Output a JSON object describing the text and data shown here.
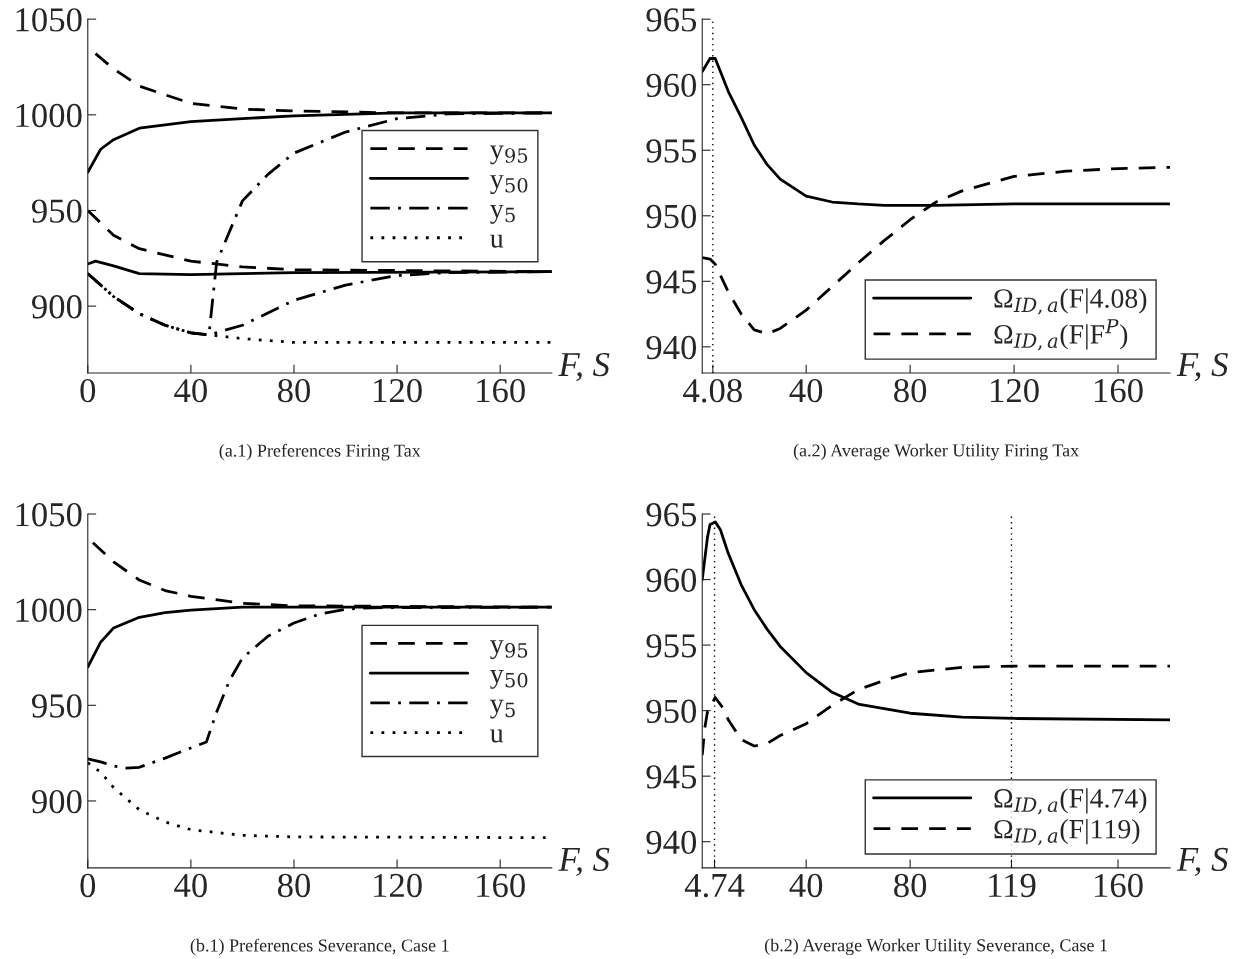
{
  "chart_data": [
    {
      "type": "line",
      "title": "(a.1) Preferences Firing Tax",
      "xlabel": "F, S",
      "xlim": [
        0,
        180
      ],
      "xticks": [
        0,
        40,
        80,
        120,
        160
      ],
      "ylim": [
        865,
        1050
      ],
      "yticks": [
        900,
        950,
        1000,
        1050
      ],
      "legend": "right",
      "grid": false,
      "series": [
        {
          "name": "y$_{95}$",
          "color": "#000000",
          "line_style": "dashed",
          "x": [
            3,
            10,
            20,
            40,
            60,
            80,
            120,
            180
          ],
          "values": [
            1032,
            1024,
            1015,
            1006,
            1003,
            1002,
            1001,
            1001
          ]
        },
        {
          "name": "y$_{50}$",
          "color": "#000000",
          "line_style": "solid",
          "x": [
            0,
            5,
            10,
            20,
            40,
            60,
            80,
            120,
            180
          ],
          "values": [
            970,
            982,
            987,
            993,
            996.5,
            998,
            999.5,
            1001,
            1001
          ]
        },
        {
          "name": "y$_{5}$",
          "color": "#000000",
          "line_style": "dashdot",
          "x": [
            0,
            10,
            20,
            30,
            40,
            47,
            50,
            60,
            70,
            80,
            100,
            120,
            140,
            180
          ],
          "values": [
            917,
            905,
            896,
            890,
            886,
            885,
            923,
            955,
            969,
            980,
            991,
            998,
            1000.5,
            1001
          ]
        },
        {
          "name": "u",
          "color": "#000000",
          "line_style": "dotted",
          "x": [
            0,
            10,
            20,
            30,
            40,
            47,
            60,
            80,
            180
          ],
          "values": [
            917,
            905,
            896,
            890,
            886,
            885,
            883,
            881,
            881
          ]
        },
        {
          "color": "#000000",
          "line_style": "dashed",
          "x": [
            0,
            10,
            20,
            40,
            60,
            80,
            180
          ],
          "values": [
            950,
            937,
            930,
            923.5,
            920.5,
            919,
            918
          ]
        },
        {
          "color": "#000000",
          "line_style": "solid",
          "x": [
            0,
            3,
            10,
            20,
            40,
            80,
            180
          ],
          "values": [
            922,
            923.5,
            921,
            917,
            916.5,
            917.5,
            918
          ]
        },
        {
          "color": "#000000",
          "line_style": "dashdot",
          "x": [
            0,
            10,
            20,
            30,
            40,
            47,
            60,
            80,
            100,
            120,
            140,
            180
          ],
          "values": [
            917,
            905,
            896,
            890,
            886,
            885,
            890,
            903,
            911,
            916,
            917.5,
            918
          ]
        }
      ]
    },
    {
      "type": "line",
      "title": "(a.2) Average Worker Utility Firing Tax",
      "xlabel": "F, S",
      "xlim": [
        0,
        180
      ],
      "xticks": [
        4.08,
        40,
        80,
        120,
        160
      ],
      "ylim": [
        938,
        965
      ],
      "yticks": [
        940,
        945,
        950,
        955,
        960,
        965
      ],
      "legend": "bottom right",
      "grid": false,
      "ref_lines": [
        {
          "axis": "x",
          "value": 4.08,
          "label": null,
          "color": "#000000",
          "line_style": "dotted"
        }
      ],
      "series": [
        {
          "name": "Ω$_{ID,a}$(F|4.08)",
          "color": "#000000",
          "line_style": "solid",
          "x": [
            0,
            3,
            5,
            10,
            15,
            20,
            25,
            30,
            40,
            50,
            60,
            70,
            90,
            120,
            180
          ],
          "values": [
            961,
            962,
            962,
            959.5,
            957.5,
            955.4,
            953.9,
            952.8,
            951.5,
            951.05,
            950.9,
            950.8,
            950.8,
            950.9,
            950.9
          ]
        },
        {
          "name": "Ω$_{ID,a}$(F|F$^{P}$)",
          "color": "#000000",
          "line_style": "dashed",
          "x": [
            0,
            3,
            5,
            10,
            15,
            20,
            25,
            30,
            40,
            50,
            60,
            70,
            80,
            90,
            100,
            120,
            140,
            160,
            180
          ],
          "values": [
            946.8,
            946.7,
            946.3,
            944.2,
            942.5,
            941.3,
            941.0,
            941.4,
            942.8,
            944.6,
            946.4,
            948.1,
            949.7,
            951.05,
            951.9,
            953.0,
            953.4,
            953.6,
            953.7
          ]
        }
      ]
    },
    {
      "type": "line",
      "title": "(b.1) Preferences Severance, Case 1",
      "xlabel": "F, S",
      "xlim": [
        0,
        180
      ],
      "xticks": [
        0,
        40,
        80,
        120,
        160
      ],
      "ylim": [
        865,
        1050
      ],
      "yticks": [
        900,
        950,
        1000,
        1050
      ],
      "legend": "right",
      "grid": false,
      "series": [
        {
          "name": "y$_{95}$",
          "color": "#000000",
          "line_style": "dashed",
          "x": [
            2,
            10,
            20,
            30,
            40,
            60,
            80,
            180
          ],
          "values": [
            1035,
            1025,
            1015.5,
            1010,
            1007,
            1003.3,
            1002,
            1001.3
          ]
        },
        {
          "name": "y$_{50}$",
          "color": "#000000",
          "line_style": "solid",
          "x": [
            0,
            5,
            10,
            20,
            30,
            40,
            60,
            180
          ],
          "values": [
            970,
            983,
            990.4,
            996,
            998.5,
            999.8,
            1001.3,
            1001.3
          ]
        },
        {
          "name": "y$_{5}$",
          "color": "#000000",
          "line_style": "dashdot",
          "x": [
            0,
            5,
            10,
            15,
            20,
            30,
            40,
            46,
            50,
            55,
            60,
            70,
            80,
            90,
            100,
            110,
            180
          ],
          "values": [
            922,
            920.4,
            918.3,
            917.2,
            917.6,
            922.4,
            927.7,
            930.8,
            946.5,
            963,
            974.7,
            986.2,
            993,
            997.7,
            1000.2,
            1001,
            1001.3
          ]
        },
        {
          "name": "u",
          "color": "#000000",
          "line_style": "dotted",
          "x": [
            0,
            5,
            10,
            20,
            30,
            40,
            60,
            80,
            180
          ],
          "values": [
            920,
            915,
            907,
            895.4,
            889,
            885,
            882,
            881.2,
            880.8
          ]
        }
      ]
    },
    {
      "type": "line",
      "title": "(b.2) Average Worker Utility Severance, Case 1",
      "xlabel": "F, S",
      "xlim": [
        0,
        180
      ],
      "xticks": [
        4.74,
        40,
        80,
        119,
        160
      ],
      "ylim": [
        938,
        965
      ],
      "yticks": [
        940,
        945,
        950,
        955,
        960,
        965
      ],
      "legend": "bottom right",
      "grid": false,
      "ref_lines": [
        {
          "axis": "x",
          "value": 4.74,
          "label": null,
          "color": "#000000",
          "line_style": "dotted"
        },
        {
          "axis": "x",
          "value": 119,
          "label": null,
          "color": "#000000",
          "line_style": "dotted"
        }
      ],
      "series": [
        {
          "name": "Ω$_{ID,a}$(F|4.74)",
          "color": "#000000",
          "line_style": "solid",
          "x": [
            0,
            2,
            3,
            5,
            7,
            10,
            15,
            20,
            25,
            30,
            40,
            50,
            60,
            80,
            100,
            120,
            180
          ],
          "values": [
            960,
            963.2,
            964.2,
            964.4,
            963.8,
            962,
            959.6,
            957.7,
            956.2,
            954.9,
            952.9,
            951.4,
            950.5,
            949.8,
            949.5,
            949.4,
            949.3
          ]
        },
        {
          "name": "Ω$_{ID,a}$(F|119)",
          "color": "#000000",
          "line_style": "dashed",
          "x": [
            0,
            1,
            2,
            5,
            8,
            10,
            15,
            20,
            25,
            30,
            40,
            50,
            60,
            70,
            80,
            100,
            120,
            180
          ],
          "values": [
            946.6,
            948.7,
            949.9,
            951,
            950.2,
            949.3,
            947.8,
            947.3,
            947.5,
            948.1,
            949,
            950.4,
            951.6,
            952.3,
            952.9,
            953.3,
            953.4,
            953.4
          ]
        }
      ]
    }
  ]
}
